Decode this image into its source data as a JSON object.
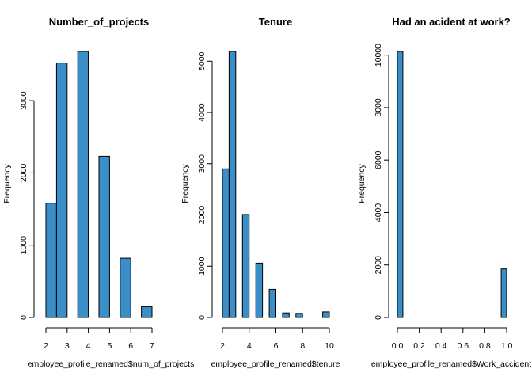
{
  "colors": {
    "bar_fill": "#3b8fc9",
    "bar_stroke": "#000000",
    "axis": "#000000",
    "background": "#ffffff"
  },
  "chart_data": [
    {
      "type": "bar",
      "title": "Number_of_projects",
      "xlabel": "employee_profile_renamed$num_of_projects",
      "ylabel": "Frequency",
      "bins": [
        [
          2.0,
          2.5
        ],
        [
          2.5,
          3.0
        ],
        [
          3.5,
          4.0
        ],
        [
          4.5,
          5.0
        ],
        [
          5.5,
          6.0
        ],
        [
          6.5,
          7.0
        ]
      ],
      "values": [
        1580,
        3520,
        3680,
        2230,
        820,
        150
      ],
      "xlim": [
        2,
        7
      ],
      "ylim": [
        0,
        3680
      ],
      "xticks": [
        2,
        3,
        4,
        5,
        6,
        7
      ],
      "yticks": [
        0,
        1000,
        2000,
        3000
      ]
    },
    {
      "type": "bar",
      "title": "Tenure",
      "xlabel": "employee_profile_renamed$tenure",
      "ylabel": "Frequency",
      "bins": [
        [
          2.0,
          2.5
        ],
        [
          2.5,
          3.0
        ],
        [
          3.5,
          4.0
        ],
        [
          4.5,
          5.0
        ],
        [
          5.5,
          6.0
        ],
        [
          6.5,
          7.0
        ],
        [
          7.5,
          8.0
        ],
        [
          9.5,
          10.0
        ]
      ],
      "values": [
        2900,
        5190,
        2010,
        1060,
        550,
        90,
        80,
        110
      ],
      "xlim": [
        2,
        10
      ],
      "ylim": [
        0,
        5190
      ],
      "xticks": [
        2,
        4,
        6,
        8,
        10
      ],
      "yticks": [
        0,
        1000,
        2000,
        3000,
        4000,
        5000
      ]
    },
    {
      "type": "bar",
      "title": "Had an acident at work?",
      "xlabel": "employee_profile_renamed$Work_accident",
      "ylabel": "Frequency",
      "bins": [
        [
          0.0,
          0.05
        ],
        [
          0.05,
          0.95
        ],
        [
          0.95,
          1.0
        ]
      ],
      "values": [
        10140,
        0,
        1850
      ],
      "xlim": [
        0,
        1
      ],
      "ylim": [
        0,
        10140
      ],
      "xticks": [
        "0.0",
        "0.2",
        "0.4",
        "0.6",
        "0.8",
        "1.0"
      ],
      "yticks": [
        0,
        2000,
        4000,
        6000,
        8000,
        10000
      ]
    }
  ]
}
